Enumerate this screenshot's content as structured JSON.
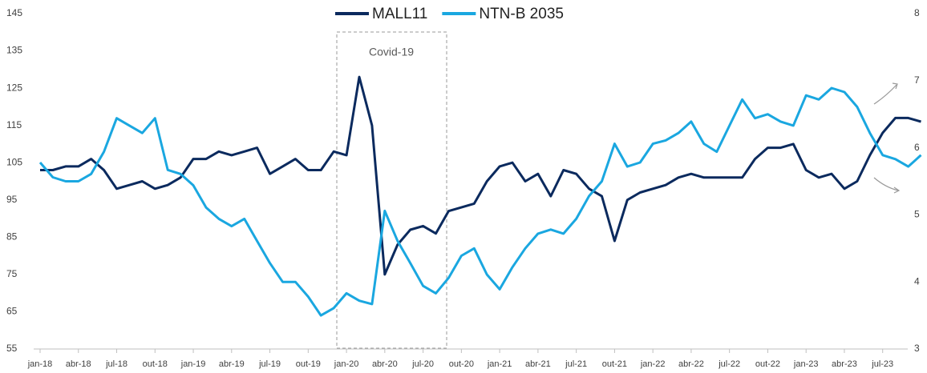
{
  "chart_data": {
    "type": "line",
    "annotations": [
      "Covid-19"
    ],
    "x": [
      "2018-01",
      "2018-02",
      "2018-03",
      "2018-04",
      "2018-05",
      "2018-06",
      "2018-07",
      "2018-08",
      "2018-09",
      "2018-10",
      "2018-11",
      "2018-12",
      "2019-01",
      "2019-02",
      "2019-03",
      "2019-04",
      "2019-05",
      "2019-06",
      "2019-07",
      "2019-08",
      "2019-09",
      "2019-10",
      "2019-11",
      "2019-12",
      "2020-01",
      "2020-02",
      "2020-03",
      "2020-04",
      "2020-05",
      "2020-06",
      "2020-07",
      "2020-08",
      "2020-09",
      "2020-10",
      "2020-11",
      "2020-12",
      "2021-01",
      "2021-02",
      "2021-03",
      "2021-04",
      "2021-05",
      "2021-06",
      "2021-07",
      "2021-08",
      "2021-09",
      "2021-10",
      "2021-11",
      "2021-12",
      "2022-01",
      "2022-02",
      "2022-03",
      "2022-04",
      "2022-05",
      "2022-06",
      "2022-07",
      "2022-08",
      "2022-09",
      "2022-10",
      "2022-11",
      "2022-12",
      "2023-01",
      "2023-02",
      "2023-03",
      "2023-04",
      "2023-05",
      "2023-06",
      "2023-07",
      "2023-08",
      "2023-09",
      "2023-10"
    ],
    "series": [
      {
        "name": "MALL11",
        "color": "#0b2a5e",
        "values": [
          103,
          103,
          104,
          104,
          106,
          103,
          98,
          99,
          100,
          98,
          99,
          101,
          106,
          106,
          108,
          107,
          108,
          109,
          102,
          104,
          106,
          103,
          103,
          108,
          107,
          128,
          115,
          75,
          83,
          87,
          88,
          86,
          92,
          93,
          94,
          100,
          104,
          105,
          100,
          102,
          96,
          103,
          102,
          98,
          96,
          84,
          95,
          97,
          98,
          99,
          101,
          102,
          101,
          101,
          101,
          101,
          106,
          109,
          109,
          110,
          103,
          101,
          102,
          98,
          100,
          107,
          113,
          117,
          117,
          116
        ]
      },
      {
        "name": "NTN-B 2035",
        "color": "#1aa7e0",
        "axis": "y2",
        "values": [
          5.78,
          5.56,
          5.5,
          5.5,
          5.61,
          5.94,
          6.44,
          6.33,
          6.22,
          6.44,
          5.67,
          5.61,
          5.44,
          5.11,
          4.94,
          4.83,
          4.94,
          4.61,
          4.28,
          4.0,
          4.0,
          3.78,
          3.5,
          3.61,
          3.83,
          3.72,
          3.67,
          5.06,
          4.61,
          4.28,
          3.94,
          3.83,
          4.06,
          4.39,
          4.5,
          4.11,
          3.89,
          4.22,
          4.5,
          4.72,
          4.78,
          4.72,
          4.94,
          5.28,
          5.5,
          6.06,
          5.72,
          5.78,
          6.06,
          6.11,
          6.22,
          6.39,
          6.06,
          5.94,
          6.33,
          6.72,
          6.44,
          6.5,
          6.39,
          6.33,
          6.78,
          6.72,
          6.89,
          6.83,
          6.61,
          6.22,
          5.89,
          5.83,
          5.72,
          5.89
        ]
      }
    ],
    "xticks": [
      {
        "value": "2018-01",
        "label": "jan-18"
      },
      {
        "value": "2018-04",
        "label": "abr-18"
      },
      {
        "value": "2018-07",
        "label": "jul-18"
      },
      {
        "value": "2018-10",
        "label": "out-18"
      },
      {
        "value": "2019-01",
        "label": "jan-19"
      },
      {
        "value": "2019-04",
        "label": "abr-19"
      },
      {
        "value": "2019-07",
        "label": "jul-19"
      },
      {
        "value": "2019-10",
        "label": "out-19"
      },
      {
        "value": "2020-01",
        "label": "jan-20"
      },
      {
        "value": "2020-04",
        "label": "abr-20"
      },
      {
        "value": "2020-07",
        "label": "jul-20"
      },
      {
        "value": "2020-10",
        "label": "out-20"
      },
      {
        "value": "2021-01",
        "label": "jan-21"
      },
      {
        "value": "2021-04",
        "label": "abr-21"
      },
      {
        "value": "2021-07",
        "label": "jul-21"
      },
      {
        "value": "2021-10",
        "label": "out-21"
      },
      {
        "value": "2022-01",
        "label": "jan-22"
      },
      {
        "value": "2022-04",
        "label": "abr-22"
      },
      {
        "value": "2022-07",
        "label": "jul-22"
      },
      {
        "value": "2022-10",
        "label": "out-22"
      },
      {
        "value": "2023-01",
        "label": "jan-23"
      },
      {
        "value": "2023-04",
        "label": "abr-23"
      },
      {
        "value": "2023-07",
        "label": "jul-23"
      }
    ],
    "ylim": [
      55,
      145
    ],
    "yticks": [
      55,
      65,
      75,
      85,
      95,
      105,
      115,
      125,
      135,
      145
    ],
    "y2lim": [
      3,
      8
    ],
    "y2ticks": [
      3,
      4,
      5,
      6,
      7,
      8
    ],
    "legend": "top"
  }
}
